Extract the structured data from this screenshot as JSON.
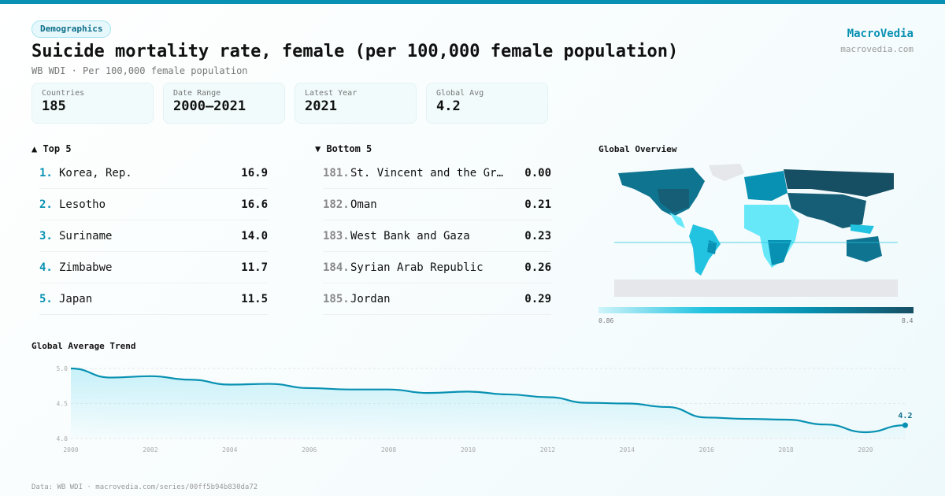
{
  "tag": "Demographics",
  "title": "Suicide mortality rate, female (per 100,000 female population)",
  "subtitle": "WB WDI · Per 100,000 female population",
  "brand": {
    "name": "MacroVedia",
    "url": "macrovedia.com"
  },
  "stats": [
    {
      "label": "Countries",
      "value": "185"
    },
    {
      "label": "Date Range",
      "value": "2000–2021"
    },
    {
      "label": "Latest Year",
      "value": "2021"
    },
    {
      "label": "Global Avg",
      "value": "4.2"
    }
  ],
  "top": {
    "title": "▲ Top 5",
    "items": [
      {
        "rank": "1.",
        "name": "Korea, Rep.",
        "value": "16.9"
      },
      {
        "rank": "2.",
        "name": "Lesotho",
        "value": "16.6"
      },
      {
        "rank": "3.",
        "name": "Suriname",
        "value": "14.0"
      },
      {
        "rank": "4.",
        "name": "Zimbabwe",
        "value": "11.7"
      },
      {
        "rank": "5.",
        "name": "Japan",
        "value": "11.5"
      }
    ]
  },
  "bottom": {
    "title": "▼ Bottom 5",
    "items": [
      {
        "rank": "181.",
        "name": "St. Vincent and the Grenadines",
        "value": "0.00"
      },
      {
        "rank": "182.",
        "name": "Oman",
        "value": "0.21"
      },
      {
        "rank": "183.",
        "name": "West Bank and Gaza",
        "value": "0.23"
      },
      {
        "rank": "184.",
        "name": "Syrian Arab Republic",
        "value": "0.26"
      },
      {
        "rank": "185.",
        "name": "Jordan",
        "value": "0.29"
      }
    ]
  },
  "map": {
    "title": "Global Overview",
    "legend_min": "0.86",
    "legend_max": "8.4",
    "colors": [
      "#cff4fa",
      "#22c3e0",
      "#0891b2",
      "#164e63"
    ]
  },
  "chart_data": {
    "type": "area",
    "title": "Global Average Trend",
    "x": [
      2000,
      2001,
      2002,
      2003,
      2004,
      2005,
      2006,
      2007,
      2008,
      2009,
      2010,
      2011,
      2012,
      2013,
      2014,
      2015,
      2016,
      2017,
      2018,
      2019,
      2020,
      2021
    ],
    "values": [
      5.0,
      4.87,
      4.89,
      4.84,
      4.77,
      4.78,
      4.72,
      4.7,
      4.7,
      4.65,
      4.67,
      4.63,
      4.59,
      4.51,
      4.5,
      4.45,
      4.3,
      4.28,
      4.27,
      4.2,
      4.09,
      4.19
    ],
    "ylim": [
      4.0,
      5.0
    ],
    "yticks": [
      "5.0",
      "4.5",
      "4.0"
    ],
    "xticks": [
      "2000",
      "2002",
      "2004",
      "2006",
      "2008",
      "2010",
      "2012",
      "2014",
      "2016",
      "2018",
      "2020"
    ],
    "last_label": "4.2",
    "color": "#0891b2",
    "grid": true
  },
  "footer": "Data: WB WDI · macrovedia.com/series/00ff5b94b830da72"
}
